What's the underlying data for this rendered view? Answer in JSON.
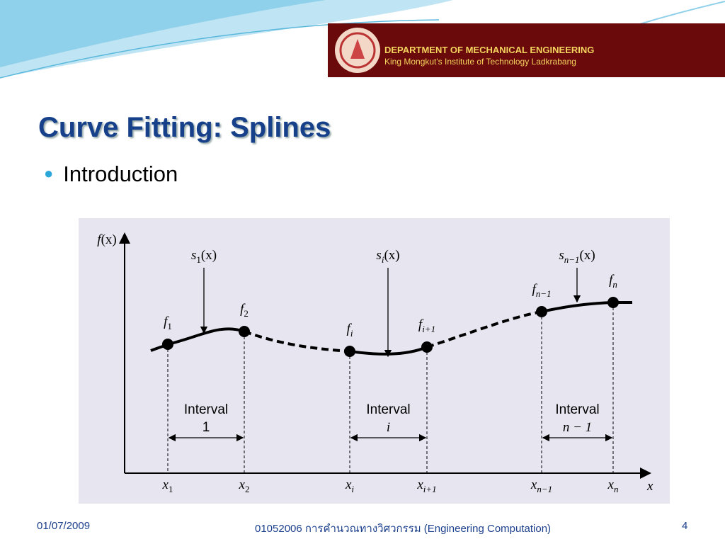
{
  "header": {
    "logo_line1": "DEPARTMENT OF MECHANICAL ENGINEERING",
    "logo_line2": "King Mongkut's Institute of Technology Ladkrabang"
  },
  "title": "Curve Fitting: Splines",
  "bullets": [
    "Introduction"
  ],
  "diagram": {
    "y_axis_label": {
      "base": "f",
      "arg": "(x)"
    },
    "x_axis_label": "x",
    "splines": [
      {
        "base": "s",
        "sub": "1",
        "arg": "(x)"
      },
      {
        "base": "s",
        "sub": "i",
        "arg": "(x)"
      },
      {
        "base": "s",
        "sub": "n−1",
        "arg": "(x)"
      }
    ],
    "points": [
      {
        "f": {
          "base": "f",
          "sub": "1"
        },
        "x": {
          "base": "x",
          "sub": "1"
        }
      },
      {
        "f": {
          "base": "f",
          "sub": "2"
        },
        "x": {
          "base": "x",
          "sub": "2"
        }
      },
      {
        "f": {
          "base": "f",
          "sub": "i"
        },
        "x": {
          "base": "x",
          "sub": "i"
        }
      },
      {
        "f": {
          "base": "f",
          "sub": "i+1"
        },
        "x": {
          "base": "x",
          "sub": "i+1"
        }
      },
      {
        "f": {
          "base": "f",
          "sub": "n−1"
        },
        "x": {
          "base": "x",
          "sub": "n−1"
        }
      },
      {
        "f": {
          "base": "f",
          "sub": "n"
        },
        "x": {
          "base": "x",
          "sub": "n"
        }
      }
    ],
    "intervals": [
      {
        "word": "Interval",
        "index": "1"
      },
      {
        "word": "Interval",
        "index": "i"
      },
      {
        "word": "Interval",
        "index": "n − 1"
      }
    ]
  },
  "footer": {
    "date": "01/07/2009",
    "course": "01052006 การคำนวณทางวิศวกรรม (Engineering Computation)",
    "page": "4"
  }
}
